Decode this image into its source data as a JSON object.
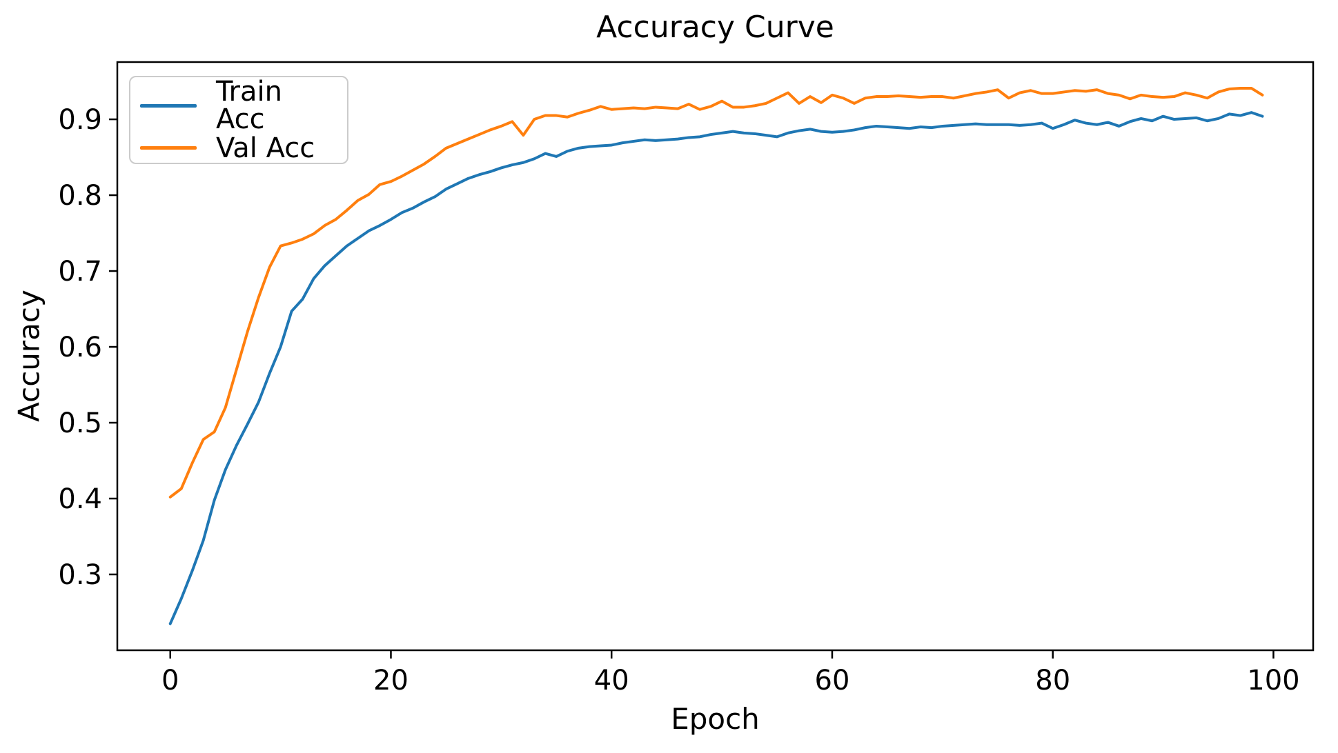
{
  "figure": {
    "title": "Accuracy Curve",
    "xlabel": "Epoch",
    "ylabel": "Accuracy",
    "background": "#ffffff",
    "spine_color": "#000000"
  },
  "legend": {
    "position": "upper left",
    "items": [
      {
        "label": "Train Acc",
        "color": "#1f77b4"
      },
      {
        "label": "Val Acc",
        "color": "#ff7f0e"
      }
    ]
  },
  "axes": {
    "x_tick_values": [
      0,
      20,
      40,
      60,
      80,
      100
    ],
    "x_tick_labels": [
      "0",
      "20",
      "40",
      "60",
      "80",
      "100"
    ],
    "y_tick_values": [
      0.3,
      0.4,
      0.5,
      0.6,
      0.7,
      0.8,
      0.9
    ],
    "y_tick_labels": [
      "0.3",
      "0.4",
      "0.5",
      "0.6",
      "0.7",
      "0.8",
      "0.9"
    ]
  },
  "chart_data": {
    "type": "line",
    "title": "Accuracy Curve",
    "xlabel": "Epoch",
    "ylabel": "Accuracy",
    "xlim": [
      -4.8,
      103.6
    ],
    "ylim": [
      0.2,
      0.9755
    ],
    "grid": false,
    "legend_position": "upper left",
    "x": [
      0,
      1,
      2,
      3,
      4,
      5,
      6,
      7,
      8,
      9,
      10,
      11,
      12,
      13,
      14,
      15,
      16,
      17,
      18,
      19,
      20,
      21,
      22,
      23,
      24,
      25,
      26,
      27,
      28,
      29,
      30,
      31,
      32,
      33,
      34,
      35,
      36,
      37,
      38,
      39,
      40,
      41,
      42,
      43,
      44,
      45,
      46,
      47,
      48,
      49,
      50,
      51,
      52,
      53,
      54,
      55,
      56,
      57,
      58,
      59,
      60,
      61,
      62,
      63,
      64,
      65,
      66,
      67,
      68,
      69,
      70,
      71,
      72,
      73,
      74,
      75,
      76,
      77,
      78,
      79,
      80,
      81,
      82,
      83,
      84,
      85,
      86,
      87,
      88,
      89,
      90,
      91,
      92,
      93,
      94,
      95,
      96,
      97,
      98,
      99
    ],
    "series": [
      {
        "name": "Train Acc",
        "color": "#1f77b4",
        "values": [
          0.235,
          0.268,
          0.305,
          0.345,
          0.398,
          0.438,
          0.47,
          0.498,
          0.527,
          0.565,
          0.6,
          0.647,
          0.663,
          0.69,
          0.707,
          0.72,
          0.733,
          0.743,
          0.753,
          0.76,
          0.768,
          0.777,
          0.783,
          0.791,
          0.798,
          0.808,
          0.815,
          0.822,
          0.827,
          0.831,
          0.836,
          0.84,
          0.843,
          0.848,
          0.855,
          0.851,
          0.858,
          0.862,
          0.864,
          0.865,
          0.866,
          0.869,
          0.871,
          0.873,
          0.872,
          0.873,
          0.874,
          0.876,
          0.877,
          0.88,
          0.882,
          0.884,
          0.882,
          0.881,
          0.879,
          0.877,
          0.882,
          0.885,
          0.887,
          0.884,
          0.883,
          0.884,
          0.886,
          0.889,
          0.891,
          0.89,
          0.889,
          0.888,
          0.89,
          0.889,
          0.891,
          0.892,
          0.893,
          0.894,
          0.893,
          0.893,
          0.893,
          0.892,
          0.893,
          0.895,
          0.888,
          0.893,
          0.899,
          0.895,
          0.893,
          0.896,
          0.891,
          0.897,
          0.901,
          0.898,
          0.904,
          0.9,
          0.901,
          0.902,
          0.898,
          0.901,
          0.907,
          0.905,
          0.909,
          0.904
        ]
      },
      {
        "name": "Val Acc",
        "color": "#ff7f0e",
        "values": [
          0.402,
          0.413,
          0.447,
          0.478,
          0.488,
          0.52,
          0.57,
          0.62,
          0.665,
          0.705,
          0.733,
          0.737,
          0.742,
          0.749,
          0.76,
          0.768,
          0.78,
          0.793,
          0.801,
          0.814,
          0.818,
          0.825,
          0.833,
          0.841,
          0.851,
          0.862,
          0.868,
          0.874,
          0.88,
          0.886,
          0.891,
          0.897,
          0.879,
          0.9,
          0.905,
          0.905,
          0.903,
          0.908,
          0.912,
          0.917,
          0.913,
          0.914,
          0.915,
          0.914,
          0.916,
          0.915,
          0.914,
          0.92,
          0.913,
          0.917,
          0.924,
          0.916,
          0.916,
          0.918,
          0.921,
          0.928,
          0.935,
          0.921,
          0.93,
          0.922,
          0.932,
          0.928,
          0.921,
          0.928,
          0.93,
          0.93,
          0.931,
          0.93,
          0.929,
          0.93,
          0.93,
          0.928,
          0.931,
          0.934,
          0.936,
          0.939,
          0.928,
          0.935,
          0.938,
          0.934,
          0.934,
          0.936,
          0.938,
          0.937,
          0.939,
          0.934,
          0.932,
          0.927,
          0.932,
          0.93,
          0.929,
          0.93,
          0.935,
          0.932,
          0.928,
          0.936,
          0.94,
          0.941,
          0.941,
          0.932
        ]
      }
    ]
  }
}
